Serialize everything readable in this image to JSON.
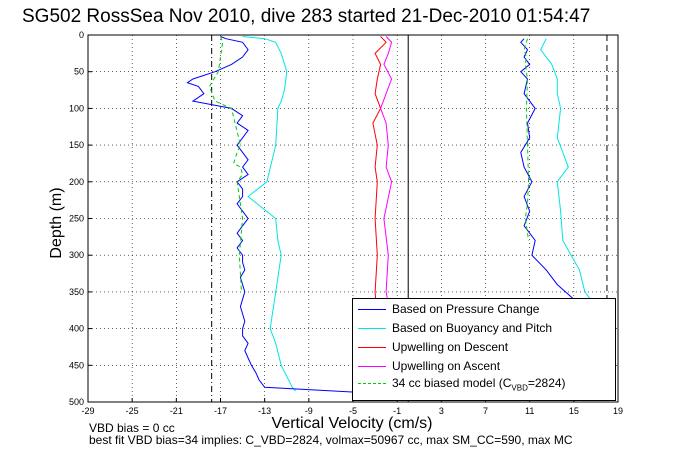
{
  "title": "SG502 RossSea Nov 2010, dive 283 started 21-Dec-2010 01:54:47",
  "footer": {
    "line1": "VBD bias = 0 cc",
    "line2": "best fit VBD bias=34 implies: C_VBD=2824, volmax=50967 cc, max SM_CC=590, max MC"
  },
  "chart_data": {
    "type": "line",
    "xlabel": "Vertical Velocity (cm/s)",
    "ylabel": "Depth (m)",
    "xlim": [
      -29,
      19
    ],
    "ylim": [
      500,
      0
    ],
    "xticks": [
      "-29",
      "-25",
      "-21",
      "-17",
      "-13",
      "-9",
      "-5",
      "-1",
      "3",
      "7",
      "11",
      "15",
      "19"
    ],
    "yticks": [
      "0",
      "50",
      "100",
      "150",
      "200",
      "250",
      "300",
      "350",
      "400",
      "450",
      "500"
    ],
    "grid": true,
    "legend_position": "bottom-right",
    "reference_lines": {
      "descent_dashdot_x": -17.8,
      "zero_x": 0,
      "ascent_dash_x": 18
    },
    "series": [
      {
        "name": "Based on Pressure Change",
        "color": "#0000ff",
        "descent": {
          "depth": [
            2,
            5,
            10,
            20,
            30,
            40,
            50,
            60,
            65,
            70,
            80,
            90,
            100,
            110,
            120,
            130,
            140,
            150,
            160,
            170,
            180,
            190,
            200,
            210,
            220,
            230,
            240,
            250,
            260,
            270,
            280,
            290,
            300,
            310,
            320,
            330,
            340,
            350,
            360,
            370,
            380,
            390,
            400,
            410,
            420,
            430,
            440,
            450,
            460,
            470,
            480,
            488
          ],
          "velocity": [
            -17.0,
            -16.5,
            -15.0,
            -14.5,
            -15.0,
            -16.0,
            -17.5,
            -19.5,
            -20.0,
            -19.0,
            -18.5,
            -19.5,
            -16.0,
            -15.0,
            -15.5,
            -14.5,
            -15.0,
            -15.5,
            -15.0,
            -14.5,
            -15.0,
            -14.5,
            -15.5,
            -15.0,
            -15.0,
            -15.5,
            -15.0,
            -14.5,
            -15.0,
            -15.5,
            -15.0,
            -15.5,
            -15.0,
            -15.0,
            -14.8,
            -15.2,
            -15.0,
            -14.8,
            -15.0,
            -15.2,
            -15.0,
            -14.8,
            -15.0,
            -15.0,
            -14.5,
            -14.8,
            -14.5,
            -14.2,
            -13.8,
            -13.5,
            -13.0,
            -3.0
          ]
        },
        "ascent": {
          "depth": [
            5,
            10,
            20,
            30,
            40,
            50,
            60,
            80,
            100,
            120,
            140,
            160,
            180,
            200,
            220,
            240,
            260,
            280,
            300,
            320,
            340,
            360
          ],
          "velocity": [
            10.5,
            10.2,
            10.8,
            10.5,
            11.0,
            10.2,
            10.8,
            10.5,
            11.5,
            10.8,
            11.0,
            10.2,
            10.5,
            11.2,
            10.5,
            11.0,
            10.5,
            11.5,
            11.2,
            12.5,
            13.5,
            15.0
          ]
        }
      },
      {
        "name": "Based on Buoyancy and Pitch",
        "color": "#00e5e5",
        "descent": {
          "depth": [
            2,
            5,
            10,
            25,
            50,
            75,
            90,
            100,
            150,
            200,
            220,
            250,
            280,
            300,
            350,
            400,
            420,
            450,
            480,
            485
          ],
          "velocity": [
            -15.0,
            -13.0,
            -12.0,
            -11.5,
            -11.0,
            -11.2,
            -11.5,
            -11.8,
            -12.0,
            -12.8,
            -14.5,
            -12.0,
            -11.8,
            -11.5,
            -12.0,
            -12.5,
            -12.0,
            -11.5,
            -10.5,
            -10.2
          ]
        },
        "ascent": {
          "depth": [
            5,
            20,
            40,
            60,
            80,
            100,
            140,
            160,
            180,
            200,
            240,
            280,
            320,
            350,
            360
          ],
          "velocity": [
            12.5,
            12.0,
            13.0,
            13.5,
            13.5,
            13.8,
            13.5,
            14.0,
            14.5,
            13.5,
            13.8,
            14.0,
            15.5,
            16.0,
            16.5
          ]
        }
      },
      {
        "name": "Upwelling on Descent",
        "color": "#ff0000",
        "depth": [
          2,
          10,
          25,
          40,
          60,
          80,
          100,
          120,
          150,
          180,
          200,
          250,
          300,
          350,
          390
        ],
        "velocity": [
          -2.5,
          -2.0,
          -3.0,
          -2.5,
          -2.8,
          -3.0,
          -2.5,
          -3.2,
          -2.8,
          -3.0,
          -2.8,
          -3.0,
          -2.8,
          -3.0,
          -2.8
        ]
      },
      {
        "name": "Upwelling on Ascent",
        "color": "#ff00ff",
        "depth": [
          2,
          10,
          25,
          40,
          60,
          80,
          100,
          120,
          150,
          180,
          200,
          250,
          300,
          350,
          390
        ],
        "velocity": [
          -2.0,
          -1.5,
          -1.8,
          -2.2,
          -1.5,
          -2.0,
          -2.5,
          -2.0,
          -1.8,
          -2.0,
          -1.5,
          -2.2,
          -1.8,
          -2.0,
          -1.5
        ]
      },
      {
        "name": "34 cc biased model",
        "color": "#00cc00",
        "descent": {
          "depth": [
            2,
            10,
            50,
            70,
            90,
            100,
            150,
            160,
            175,
            180,
            190,
            200,
            230,
            250,
            300,
            350
          ],
          "velocity": [
            -17.0,
            -16.8,
            -17.2,
            -18.0,
            -17.5,
            -16.0,
            -15.2,
            -15.5,
            -15.8,
            -15.2,
            -15.0,
            -15.5,
            -15.2,
            -15.0,
            -15.3,
            -15.1
          ]
        },
        "ascent": {
          "depth": [
            5,
            20,
            30,
            40,
            60,
            100,
            200,
            230,
            250,
            280
          ],
          "velocity": [
            10.8,
            10.5,
            10.7,
            10.6,
            10.8,
            10.7,
            10.9,
            10.8,
            10.6,
            10.9
          ]
        }
      }
    ]
  },
  "legend": {
    "items": [
      {
        "label": "Based on Pressure Change"
      },
      {
        "label": "Based on Buoyancy and Pitch"
      },
      {
        "label": "Upwelling on Descent"
      },
      {
        "label": "Upwelling on Ascent"
      },
      {
        "label_main": "34 cc biased model (C",
        "label_sub": "VBD",
        "label_end": "=2824)"
      }
    ]
  }
}
